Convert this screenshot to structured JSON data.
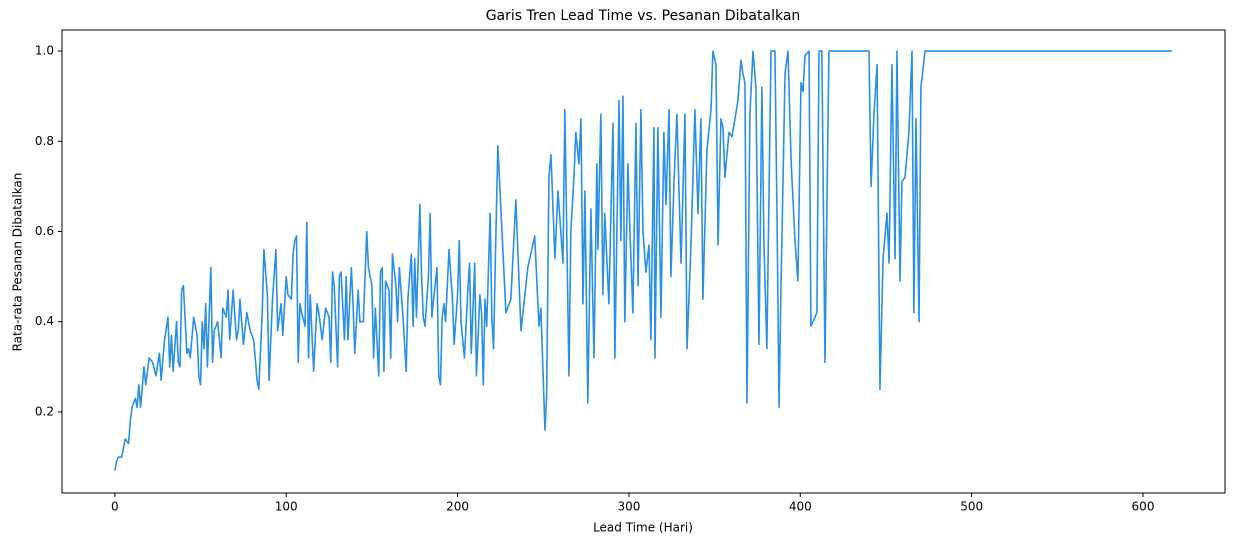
{
  "chart_data": {
    "type": "line",
    "title": "Garis Tren Lead Time vs. Pesanan Dibatalkan",
    "x_label": "Lead Time (Hari)",
    "y_label": "Rata-rata Pesanan Dibatalkan",
    "color": "#2a8fe6",
    "grid": false,
    "xlim": [
      -30.85,
      647.85
    ],
    "ylim": [
      0.0203,
      1.0467
    ],
    "xticks": [
      0,
      100,
      200,
      300,
      400,
      500,
      600
    ],
    "yticks": [
      0.2,
      0.4,
      0.6,
      0.8,
      {
        "value": 1.0,
        "label": "1.0"
      }
    ],
    "x": [
      0,
      1,
      2,
      4,
      6,
      8,
      9,
      10,
      12,
      13,
      14,
      15,
      17,
      18,
      20,
      22,
      24,
      26,
      27,
      29,
      31,
      32,
      33,
      34,
      36,
      37,
      38,
      39,
      40,
      42,
      43,
      44,
      46,
      47,
      48,
      49,
      50,
      51,
      52,
      53,
      54,
      56,
      57,
      58,
      60,
      62,
      63,
      65,
      66,
      67,
      69,
      71,
      72,
      73,
      75,
      77,
      79,
      81,
      83,
      84,
      86,
      87,
      89,
      90,
      92,
      94,
      95,
      97,
      98,
      100,
      101,
      103,
      104,
      105,
      106,
      107,
      108,
      109,
      111,
      112,
      113,
      114,
      116,
      118,
      119,
      121,
      123,
      125,
      126,
      127,
      128,
      130,
      131,
      132,
      134,
      135,
      136,
      138,
      139,
      140,
      142,
      143,
      145,
      147,
      148,
      150,
      151,
      152,
      154,
      155,
      156,
      157,
      158,
      160,
      161,
      162,
      164,
      165,
      166,
      168,
      170,
      171,
      173,
      174,
      175,
      176,
      178,
      179,
      180,
      181,
      183,
      184,
      185,
      186,
      188,
      189,
      190,
      191,
      192,
      193,
      195,
      197,
      198,
      200,
      201,
      202,
      204,
      206,
      207,
      208,
      210,
      211,
      213,
      214,
      215,
      216,
      217,
      219,
      220,
      221,
      222,
      223.5,
      228.2,
      231.1,
      234,
      237,
      241,
      245,
      247.5,
      248.6,
      251,
      252,
      253.3,
      254.5,
      256.8,
      258.6,
      261.5,
      262.6,
      265,
      266.1,
      267.9,
      269,
      270.8,
      272,
      273.2,
      274.3,
      276,
      277.8,
      279.6,
      281.3,
      281.9,
      283.6,
      284.8,
      285.9,
      288.3,
      290.7,
      291.8,
      294.2,
      295.3,
      296.5,
      297.6,
      299.4,
      300.6,
      302.3,
      304.1,
      305.3,
      307,
      308.2,
      309.9,
      311.7,
      312.8,
      314.6,
      315.2,
      316.9,
      318.7,
      320.4,
      321.6,
      323.4,
      324.5,
      326.3,
      328,
      330.4,
      332.7,
      333.9,
      336.2,
      338.5,
      340.3,
      342,
      343.2,
      345.5,
      347.9,
      349,
      350.8,
      352,
      353.7,
      354.9,
      356,
      358.4,
      360.1,
      361.9,
      363.6,
      365.4,
      366.5,
      367.7,
      368.9,
      370.6,
      372.4,
      374.1,
      375.9,
      377.6,
      378.8,
      380.5,
      382.9,
      385.2,
      386.4,
      387.6,
      388.7,
      391.1,
      392.8,
      394.6,
      396.9,
      398.6,
      400.4,
      401.6,
      402.7,
      405.1,
      406.2,
      409.7,
      410.9,
      412.6,
      414.4,
      416.7,
      440.1,
      441.3,
      443,
      444.8,
      446.5,
      448.3,
      450.6,
      451.8,
      453.5,
      455.3,
      456.4,
      458.2,
      459.3,
      461.1,
      463.4,
      465.2,
      466.3,
      467.5,
      469.3,
      470.4,
      472.8,
      617
    ],
    "values": [
      0.07,
      0.09,
      0.1,
      0.1,
      0.14,
      0.13,
      0.18,
      0.21,
      0.23,
      0.21,
      0.26,
      0.21,
      0.3,
      0.26,
      0.32,
      0.31,
      0.28,
      0.33,
      0.27,
      0.36,
      0.41,
      0.3,
      0.37,
      0.29,
      0.4,
      0.31,
      0.3,
      0.47,
      0.48,
      0.33,
      0.34,
      0.32,
      0.41,
      0.39,
      0.37,
      0.28,
      0.26,
      0.4,
      0.34,
      0.44,
      0.3,
      0.52,
      0.31,
      0.38,
      0.4,
      0.32,
      0.43,
      0.41,
      0.47,
      0.36,
      0.47,
      0.36,
      0.38,
      0.45,
      0.35,
      0.42,
      0.38,
      0.36,
      0.27,
      0.25,
      0.42,
      0.56,
      0.46,
      0.27,
      0.45,
      0.56,
      0.38,
      0.44,
      0.37,
      0.5,
      0.46,
      0.45,
      0.55,
      0.58,
      0.59,
      0.31,
      0.44,
      0.42,
      0.39,
      0.62,
      0.32,
      0.46,
      0.29,
      0.44,
      0.42,
      0.36,
      0.43,
      0.41,
      0.31,
      0.51,
      0.48,
      0.3,
      0.5,
      0.51,
      0.36,
      0.5,
      0.36,
      0.52,
      0.44,
      0.33,
      0.47,
      0.4,
      0.4,
      0.6,
      0.52,
      0.48,
      0.32,
      0.43,
      0.28,
      0.51,
      0.52,
      0.29,
      0.49,
      0.47,
      0.32,
      0.55,
      0.48,
      0.4,
      0.52,
      0.42,
      0.29,
      0.45,
      0.55,
      0.39,
      0.54,
      0.41,
      0.66,
      0.5,
      0.41,
      0.39,
      0.5,
      0.64,
      0.41,
      0.45,
      0.52,
      0.28,
      0.26,
      0.41,
      0.44,
      0.4,
      0.56,
      0.45,
      0.35,
      0.46,
      0.58,
      0.4,
      0.32,
      0.47,
      0.53,
      0.33,
      0.53,
      0.28,
      0.46,
      0.42,
      0.26,
      0.45,
      0.39,
      0.64,
      0.41,
      0.34,
      0.53,
      0.79,
      0.42,
      0.45,
      0.67,
      0.38,
      0.52,
      0.59,
      0.39,
      0.43,
      0.16,
      0.24,
      0.72,
      0.77,
      0.54,
      0.69,
      0.53,
      0.87,
      0.28,
      0.6,
      0.72,
      0.82,
      0.75,
      0.85,
      0.44,
      0.69,
      0.22,
      0.65,
      0.32,
      0.75,
      0.56,
      0.86,
      0.46,
      0.64,
      0.44,
      0.84,
      0.32,
      0.89,
      0.58,
      0.9,
      0.4,
      0.75,
      0.6,
      0.42,
      0.84,
      0.48,
      0.87,
      0.6,
      0.51,
      0.57,
      0.36,
      0.83,
      0.32,
      0.83,
      0.41,
      0.82,
      0.66,
      0.87,
      0.5,
      0.71,
      0.86,
      0.53,
      0.86,
      0.34,
      0.57,
      0.87,
      0.64,
      0.85,
      0.45,
      0.78,
      0.87,
      1.0,
      0.97,
      0.57,
      0.85,
      0.83,
      0.72,
      0.82,
      0.81,
      0.85,
      0.89,
      0.98,
      0.95,
      0.93,
      0.22,
      0.86,
      1.0,
      0.92,
      0.35,
      0.92,
      0.57,
      0.34,
      1.0,
      1.0,
      0.64,
      0.21,
      0.47,
      0.95,
      1.0,
      0.76,
      0.58,
      0.49,
      0.93,
      0.91,
      0.99,
      1.0,
      0.39,
      0.42,
      1.0,
      1.0,
      0.31,
      1.0,
      1.0,
      0.7,
      0.86,
      0.97,
      0.25,
      0.54,
      0.64,
      0.53,
      0.97,
      0.54,
      1.0,
      0.49,
      0.71,
      0.72,
      0.82,
      1.0,
      0.42,
      0.85,
      0.4,
      0.92,
      1.0,
      1.0
    ]
  }
}
